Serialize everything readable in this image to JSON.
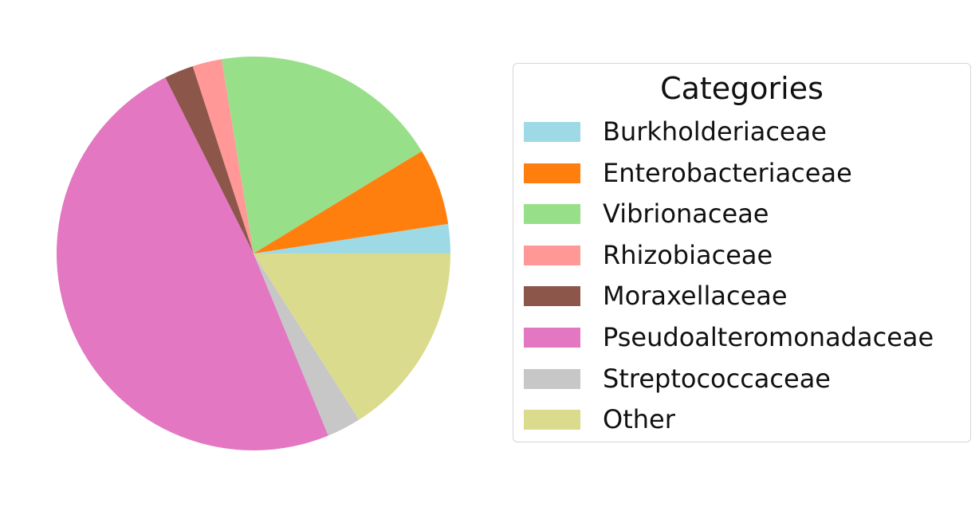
{
  "chart_data": {
    "type": "pie",
    "title": "",
    "legend": {
      "title": "Categories",
      "placement": "right"
    },
    "slices": [
      {
        "label": "Burkholderiaceae",
        "value": 2.4,
        "color": "#9edae5"
      },
      {
        "label": "Enterobacteriaceae",
        "value": 6.3,
        "color": "#ff7f0e"
      },
      {
        "label": "Vibrionaceae",
        "value": 18.9,
        "color": "#98df8a"
      },
      {
        "label": "Rhizobiaceae",
        "value": 2.4,
        "color": "#ff9896"
      },
      {
        "label": "Moraxellaceae",
        "value": 2.4,
        "color": "#8c564b"
      },
      {
        "label": "Pseudoalteromonadaceae",
        "value": 48.8,
        "color": "#e377c2"
      },
      {
        "label": "Streptococcaceae",
        "value": 2.8,
        "color": "#c7c7c7"
      },
      {
        "label": "Other",
        "value": 16.0,
        "color": "#dbdb8d"
      }
    ],
    "start_angle_deg": 0,
    "direction": "counterclockwise"
  }
}
